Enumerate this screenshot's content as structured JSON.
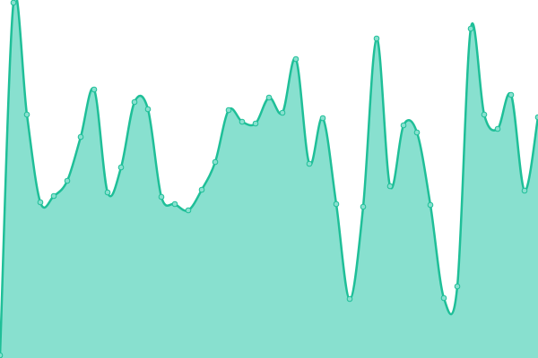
{
  "chart_data": {
    "type": "area",
    "categories": [
      null,
      null,
      null,
      null,
      null,
      null,
      null,
      null,
      null,
      null,
      null,
      null,
      null,
      null,
      null,
      null,
      null,
      null,
      null,
      null,
      null,
      null,
      null,
      null,
      null,
      null,
      null,
      null,
      null,
      null,
      null,
      null,
      null,
      null,
      null,
      null,
      null,
      null,
      null,
      null,
      null
    ],
    "series": [
      {
        "color": "#1fbf98",
        "fill": "#88e0cf",
        "values": [
          3,
          397,
          272,
          174,
          181,
          198,
          247,
          300,
          185,
          213,
          286,
          278,
          180,
          172,
          165,
          188,
          219,
          277,
          264,
          262,
          291,
          274,
          334,
          217,
          268,
          172,
          66,
          169,
          357,
          192,
          260,
          252,
          171,
          67,
          80,
          368,
          272,
          256,
          294,
          187,
          269
        ]
      }
    ],
    "ylim": [
      0,
      400
    ],
    "smooth": true,
    "markers": true
  }
}
